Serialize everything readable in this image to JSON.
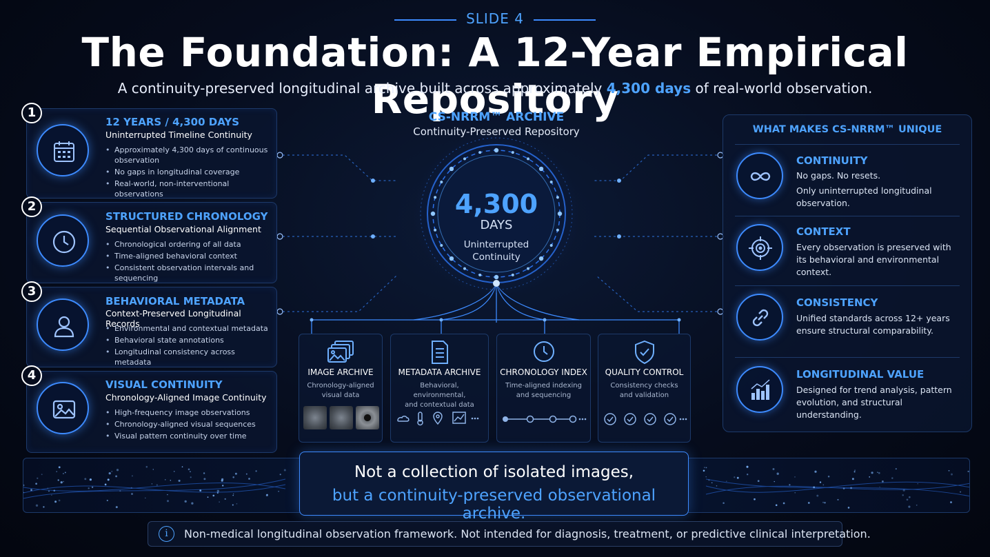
{
  "header": {
    "slide_label": "SLIDE 4",
    "title": "The Foundation: A 12-Year Empirical Repository",
    "subtitle_before": "A continuity-preserved longitudinal archive built across approximately ",
    "subtitle_highlight": "4,300 days",
    "subtitle_after": " of real-world observation."
  },
  "left_cards": [
    {
      "number": "1",
      "icon": "calendar-icon",
      "heading": "12 YEARS / 4,300 DAYS",
      "subheading": "Uninterrupted Timeline Continuity",
      "bullets": [
        "Approximately 4,300 days of continuous observation",
        "No gaps in longitudinal coverage",
        "Real-world, non-interventional observations"
      ]
    },
    {
      "number": "2",
      "icon": "clock-icon",
      "heading": "STRUCTURED CHRONOLOGY",
      "subheading": "Sequential Observational Alignment",
      "bullets": [
        "Chronological ordering of all data",
        "Time-aligned behavioral context",
        "Consistent observation intervals and sequencing"
      ]
    },
    {
      "number": "3",
      "icon": "user-icon",
      "heading": "BEHAVIORAL METADATA",
      "subheading": "Context-Preserved Longitudinal Records",
      "bullets": [
        "Environmental and contextual metadata",
        "Behavioral state annotations",
        "Longitudinal consistency across metadata"
      ]
    },
    {
      "number": "4",
      "icon": "image-icon",
      "heading": "VISUAL CONTINUITY",
      "subheading": "Chronology-Aligned Image Continuity",
      "bullets": [
        "High-frequency image observations",
        "Chronology-aligned visual sequences",
        "Visual pattern continuity over time"
      ]
    }
  ],
  "center": {
    "title": "CS-NRRM™ ARCHIVE",
    "subtitle": "Continuity-Preserved Repository",
    "big_number": "4,300",
    "unit": "DAYS",
    "desc_line1": "Uninterrupted",
    "desc_line2": "Continuity"
  },
  "archive_cards": [
    {
      "icon": "images-stack-icon",
      "title": "IMAGE ARCHIVE",
      "desc_line1": "Chronology-aligned",
      "desc_line2": "visual data"
    },
    {
      "icon": "document-icon",
      "title": "METADATA ARCHIVE",
      "desc_line1": "Behavioral, environmental,",
      "desc_line2": "and contextual data"
    },
    {
      "icon": "clock-icon",
      "title": "CHRONOLOGY INDEX",
      "desc_line1": "Time-aligned indexing",
      "desc_line2": "and sequencing"
    },
    {
      "icon": "shield-check-icon",
      "title": "QUALITY CONTROL",
      "desc_line1": "Consistency checks",
      "desc_line2": "and validation"
    }
  ],
  "right_panel": {
    "title": "WHAT MAKES CS-NRRM™ UNIQUE",
    "items": [
      {
        "icon": "infinity-icon",
        "heading": "CONTINUITY",
        "text_line1": "No gaps. No resets.",
        "text_line2": "Only uninterrupted longitudinal observation."
      },
      {
        "icon": "target-icon",
        "heading": "CONTEXT",
        "text_line1": "Every observation is preserved with its behavioral and environmental context.",
        "text_line2": ""
      },
      {
        "icon": "link-icon",
        "heading": "CONSISTENCY",
        "text_line1": "Unified standards across 12+ years ensure structural comparability.",
        "text_line2": ""
      },
      {
        "icon": "bar-chart-icon",
        "heading": "LONGITUDINAL VALUE",
        "text_line1": "Designed for trend analysis, pattern evolution, and structural understanding.",
        "text_line2": ""
      }
    ]
  },
  "quote": {
    "line1": "Not a collection of isolated images,",
    "line2": "but a continuity-preserved observational archive."
  },
  "disclaimer": {
    "icon": "info-icon",
    "text": "Non-medical longitudinal observation framework. Not intended for diagnosis, treatment, or predictive clinical interpretation."
  },
  "colors": {
    "accent": "#4ea3ff",
    "background": "#060c1c",
    "border": "#1d3a6a"
  }
}
